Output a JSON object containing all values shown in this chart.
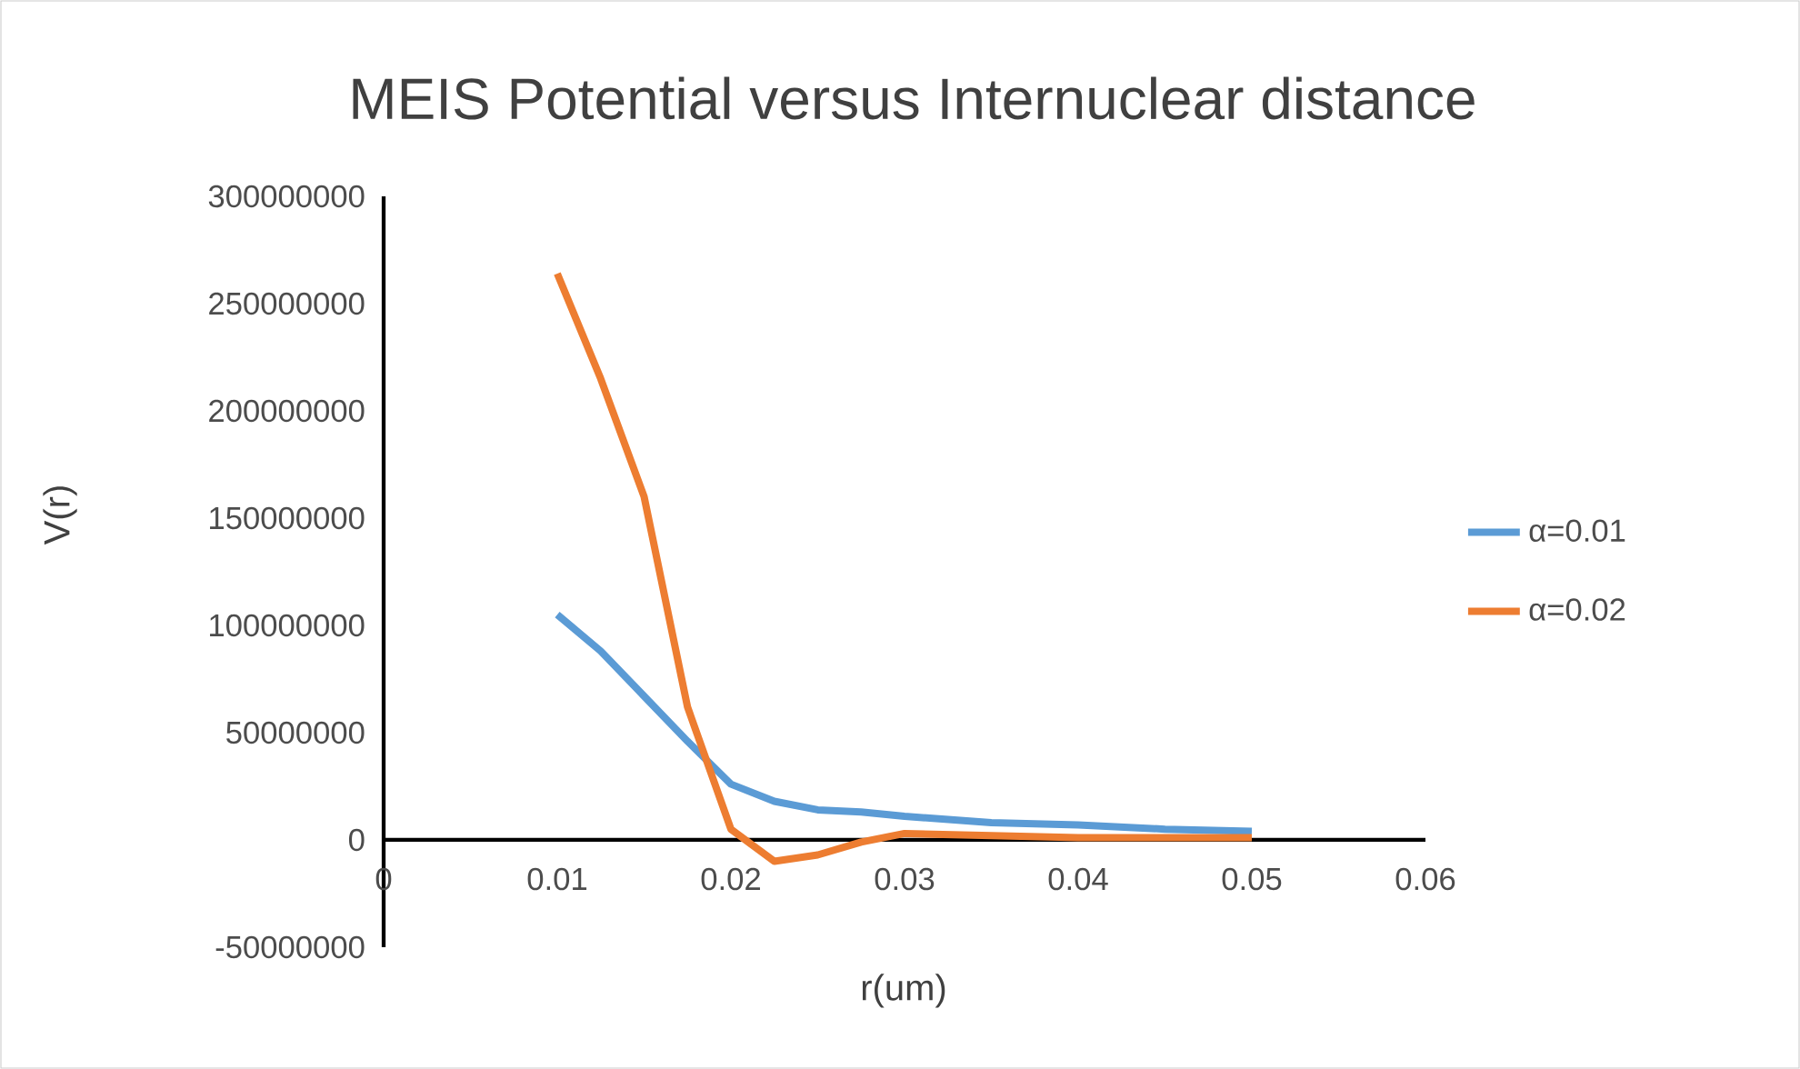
{
  "chart_data": {
    "type": "line",
    "title": "MEIS Potential versus Internuclear distance",
    "xlabel": "r(um)",
    "ylabel": "V(r)",
    "xlim": [
      0,
      0.06
    ],
    "xticks": [
      0,
      0.01,
      0.02,
      0.03,
      0.04,
      0.05,
      0.06
    ],
    "ylim": [
      -50000000,
      300000000
    ],
    "yticks": [
      -50000000,
      0,
      50000000,
      100000000,
      150000000,
      200000000,
      250000000,
      300000000
    ],
    "grid": false,
    "legend": "right",
    "marker": "none",
    "line_style": "solid",
    "series": [
      {
        "name": "α=0.01",
        "color": "#5b9bd5",
        "x": [
          0.01,
          0.0125,
          0.015,
          0.0175,
          0.02,
          0.0225,
          0.025,
          0.0275,
          0.03,
          0.035,
          0.04,
          0.045,
          0.05
        ],
        "values": [
          105000000,
          88000000,
          67000000,
          46000000,
          26000000,
          18000000,
          14000000,
          13000000,
          11000000,
          8000000,
          7000000,
          5000000,
          4000000
        ]
      },
      {
        "name": "α=0.02",
        "color": "#ed7d31",
        "x": [
          0.01,
          0.0125,
          0.015,
          0.0175,
          0.02,
          0.0225,
          0.025,
          0.0275,
          0.03,
          0.035,
          0.04,
          0.045,
          0.05
        ],
        "values": [
          264000000,
          215000000,
          160000000,
          62000000,
          5000000,
          -10000000,
          -7000000,
          -1000000,
          3000000,
          2000000,
          1000000,
          1000000,
          1000000
        ]
      }
    ]
  }
}
